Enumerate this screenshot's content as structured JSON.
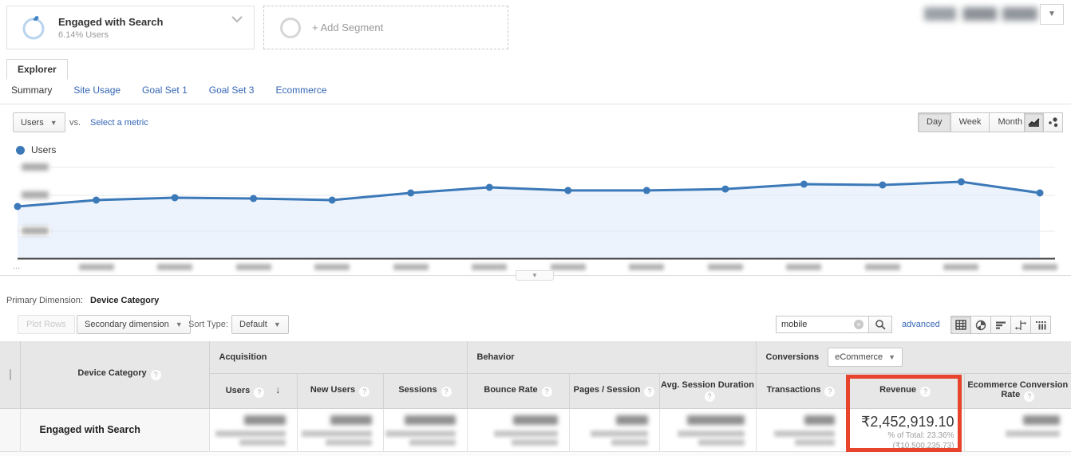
{
  "app": {
    "accent_blue": "#3c79b8",
    "link_blue": "#3566b5",
    "highlight_red": "#e8432c"
  },
  "segments": {
    "applied_segment": {
      "title": "Engaged with Search",
      "subtitle": "6.14% Users"
    },
    "add_segment_label": "+ Add Segment",
    "date_range_redacted": true
  },
  "explorer": {
    "tab_label": "Explorer",
    "subtabs": [
      {
        "label": "Summary",
        "active": true
      },
      {
        "label": "Site Usage",
        "active": false
      },
      {
        "label": "Goal Set 1",
        "active": false
      },
      {
        "label": "Goal Set 3",
        "active": false
      },
      {
        "label": "Ecommerce",
        "active": false
      }
    ]
  },
  "metric_controls": {
    "metric_selector": "Users",
    "vs_label": "vs.",
    "select_metric_label": "Select a metric",
    "granularity_buttons": [
      "Day",
      "Week",
      "Month"
    ],
    "granularity_active": "Day"
  },
  "legend": {
    "series_label": "Users"
  },
  "chart_data": {
    "type": "line",
    "title": "Users per day (segment: Engaged with Search)",
    "series": [
      {
        "name": "Users",
        "color": "#3c79b8",
        "points_pct_of_plot_height": [
          51.6,
          57.9,
          60.3,
          59.5,
          57.9,
          65.1,
          70.6,
          67.5,
          67.5,
          69.0,
          73.8,
          73.0,
          76.2,
          65.1
        ]
      }
    ],
    "x_tick_count": 14,
    "x_tick_labels_redacted": true,
    "y_axis_labels_redacted": true,
    "x_overflow_indicator": "...",
    "grid": true,
    "area_fill": true,
    "legend_position": "top-left"
  },
  "primary_dimension": {
    "label": "Primary Dimension:",
    "value": "Device Category"
  },
  "toolbar": {
    "plot_rows_label": "Plot Rows",
    "secondary_dimension_label": "Secondary dimension",
    "sort_type_label": "Sort Type:",
    "sort_type_value": "Default",
    "search_value": "mobile",
    "advanced_label": "advanced"
  },
  "table": {
    "column_groups": [
      {
        "label": "Acquisition"
      },
      {
        "label": "Behavior"
      },
      {
        "label": "Conversions",
        "dropdown_value": "eCommerce"
      }
    ],
    "dimension_column": "Device Category",
    "columns": [
      "Users",
      "New Users",
      "Sessions",
      "Bounce Rate",
      "Pages / Session",
      "Avg. Session Duration",
      "Transactions",
      "Revenue",
      "Ecommerce Conversion Rate"
    ],
    "row": {
      "dimension": "Engaged with Search",
      "revenue": {
        "value": "₹2,452,919.10",
        "percent_of_total": "% of Total: 23.36%",
        "total_value": "(₹10,500,235.73)"
      },
      "other_cells_redacted": true
    }
  }
}
